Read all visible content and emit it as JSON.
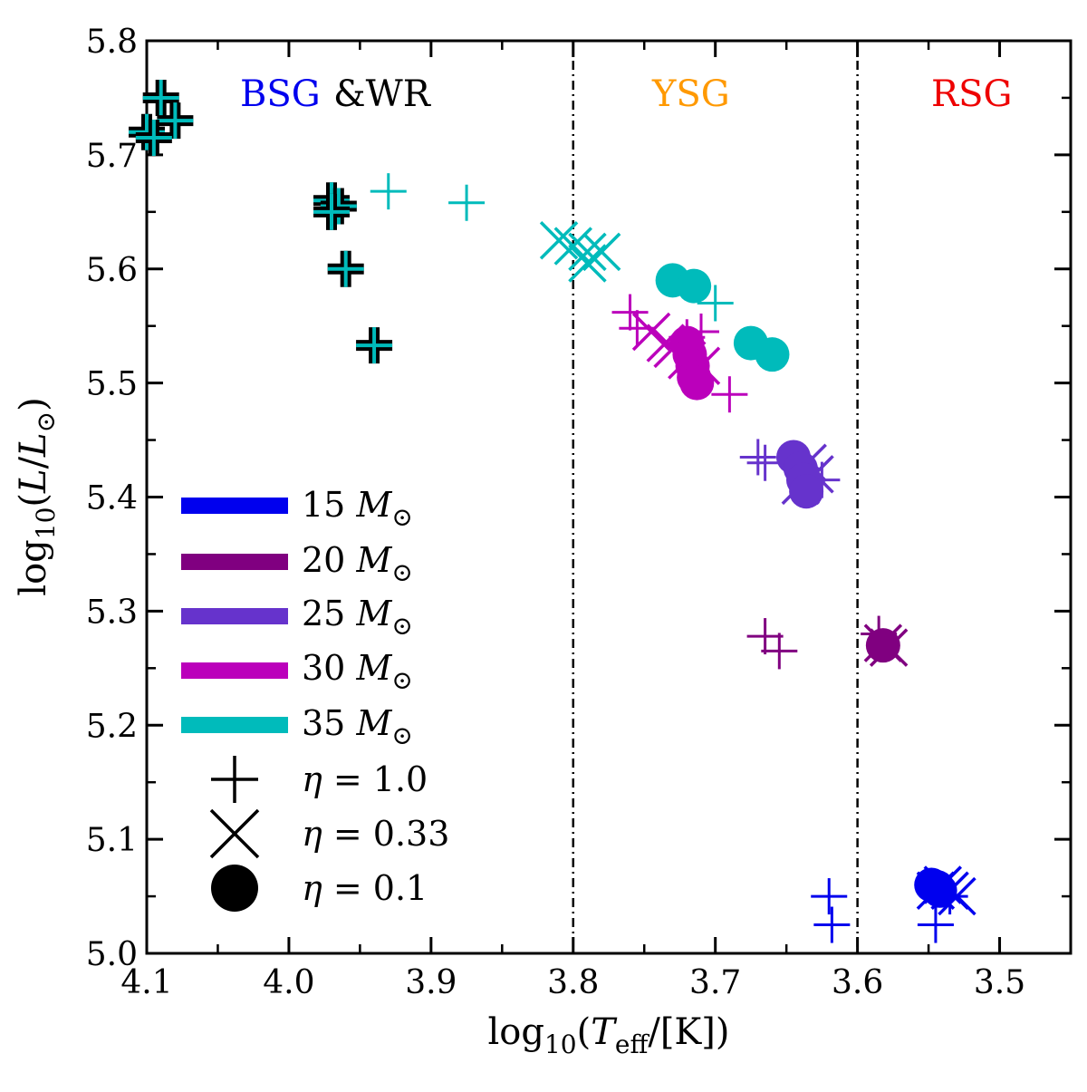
{
  "chart_data": {
    "type": "scatter",
    "title": "",
    "xlim": [
      4.1,
      3.45
    ],
    "ylim": [
      5.0,
      5.8
    ],
    "x_ticks": [
      4.1,
      4.0,
      3.9,
      3.8,
      3.7,
      3.6,
      3.5
    ],
    "x_tick_labels": [
      "4.1",
      "4.0",
      "3.9",
      "3.8",
      "3.7",
      "3.6",
      "3.5"
    ],
    "y_ticks": [
      5.0,
      5.1,
      5.2,
      5.3,
      5.4,
      5.5,
      5.6,
      5.7,
      5.8
    ],
    "y_tick_labels": [
      "5.0",
      "5.1",
      "5.2",
      "5.3",
      "5.4",
      "5.5",
      "5.6",
      "5.7",
      "5.8"
    ],
    "xlabel": {
      "pre": "log",
      "sub1": "10",
      "open": "(",
      "var": "T",
      "sub2": "eff",
      "post": "/[K])"
    },
    "ylabel": {
      "pre": "log",
      "sub1": "10",
      "open": "(",
      "var": "L",
      "slash": "/",
      "var2": "L",
      "sub2": "⊙",
      "close": ")"
    },
    "vlines": [
      3.8,
      3.6
    ],
    "regions": [
      {
        "name": "BSG",
        "color": "#0000ee"
      },
      {
        "name": "&WR",
        "color": "#000000"
      },
      {
        "name": "YSG",
        "color": "#ff9900"
      },
      {
        "name": "RSG",
        "color": "#ee0000"
      }
    ],
    "legend": {
      "placement": "left",
      "masses": [
        {
          "number": "15",
          "unit": "M",
          "sub": "⊙",
          "color": "#0000ee"
        },
        {
          "number": "20",
          "unit": "M",
          "sub": "⊙",
          "color": "#800080"
        },
        {
          "number": "25",
          "unit": "M",
          "sub": "⊙",
          "color": "#6633cc"
        },
        {
          "number": "30",
          "unit": "M",
          "sub": "⊙",
          "color": "#bb00bb"
        },
        {
          "number": "35",
          "unit": "M",
          "sub": "⊙",
          "color": "#00bbbb"
        }
      ],
      "markers": [
        {
          "marker": "plus",
          "symbol": "η",
          "eq": " = ",
          "value": "1.0"
        },
        {
          "marker": "x",
          "symbol": "η",
          "eq": " = ",
          "value": "0.33"
        },
        {
          "marker": "circle",
          "symbol": "η",
          "eq": " = ",
          "value": "0.1"
        }
      ]
    },
    "series": [
      {
        "name": "35 M⊙ η=1.0 (WR)",
        "color": "#00bbbb",
        "marker": "plus",
        "outline": true,
        "points": [
          [
            4.09,
            5.75
          ],
          [
            4.08,
            5.73
          ],
          [
            4.1,
            5.72
          ],
          [
            4.095,
            5.715
          ],
          [
            3.97,
            5.66
          ],
          [
            3.965,
            5.655
          ],
          [
            3.97,
            5.65
          ],
          [
            3.96,
            5.6
          ],
          [
            3.94,
            5.533
          ]
        ]
      },
      {
        "name": "35 M⊙ η=1.0",
        "color": "#00bbbb",
        "marker": "plus",
        "points": [
          [
            3.93,
            5.668
          ],
          [
            3.875,
            5.658
          ],
          [
            3.7,
            5.57
          ]
        ]
      },
      {
        "name": "35 M⊙ η=0.33",
        "color": "#00bbbb",
        "marker": "x",
        "points": [
          [
            3.81,
            5.625
          ],
          [
            3.8,
            5.62
          ],
          [
            3.79,
            5.615
          ],
          [
            3.78,
            5.615
          ],
          [
            3.79,
            5.605
          ]
        ]
      },
      {
        "name": "35 M⊙ η=0.1",
        "color": "#00bbbb",
        "marker": "circle",
        "points": [
          [
            3.73,
            5.59
          ],
          [
            3.715,
            5.585
          ],
          [
            3.675,
            5.535
          ],
          [
            3.66,
            5.525
          ]
        ]
      },
      {
        "name": "30 M⊙ η=1.0",
        "color": "#bb00bb",
        "marker": "plus",
        "points": [
          [
            3.76,
            5.562
          ],
          [
            3.755,
            5.548
          ],
          [
            3.72,
            5.54
          ],
          [
            3.69,
            5.49
          ],
          [
            3.71,
            5.545
          ]
        ]
      },
      {
        "name": "30 M⊙ η=0.33",
        "color": "#bb00bb",
        "marker": "x",
        "points": [
          [
            3.745,
            5.545
          ],
          [
            3.735,
            5.535
          ],
          [
            3.73,
            5.53
          ],
          [
            3.72,
            5.52
          ],
          [
            3.71,
            5.515
          ]
        ]
      },
      {
        "name": "30 M⊙ η=0.1",
        "color": "#bb00bb",
        "marker": "circle",
        "points": [
          [
            3.72,
            5.535
          ],
          [
            3.718,
            5.525
          ],
          [
            3.716,
            5.515
          ],
          [
            3.715,
            5.505
          ],
          [
            3.713,
            5.5
          ]
        ]
      },
      {
        "name": "25 M⊙ η=1.0",
        "color": "#6633cc",
        "marker": "plus",
        "points": [
          [
            3.67,
            5.435
          ],
          [
            3.665,
            5.43
          ],
          [
            3.625,
            5.415
          ]
        ]
      },
      {
        "name": "25 M⊙ η=0.33",
        "color": "#6633cc",
        "marker": "x",
        "points": [
          [
            3.635,
            5.43
          ],
          [
            3.63,
            5.42
          ],
          [
            3.64,
            5.41
          ]
        ]
      },
      {
        "name": "25 M⊙ η=0.1",
        "color": "#6633cc",
        "marker": "circle",
        "points": [
          [
            3.645,
            5.435
          ],
          [
            3.64,
            5.425
          ],
          [
            3.638,
            5.415
          ],
          [
            3.636,
            5.405
          ]
        ]
      },
      {
        "name": "20 M⊙ η=1.0",
        "color": "#800080",
        "marker": "plus",
        "points": [
          [
            3.665,
            5.278
          ],
          [
            3.655,
            5.265
          ],
          [
            3.585,
            5.28
          ]
        ]
      },
      {
        "name": "20 M⊙ η=0.33",
        "color": "#800080",
        "marker": "x",
        "points": [
          [
            3.582,
            5.272
          ],
          [
            3.578,
            5.268
          ]
        ]
      },
      {
        "name": "20 M⊙ η=0.1",
        "color": "#800080",
        "marker": "circle",
        "points": [
          [
            3.582,
            5.27
          ]
        ]
      },
      {
        "name": "15 M⊙ η=1.0",
        "color": "#0000ee",
        "marker": "plus",
        "points": [
          [
            3.62,
            5.05
          ],
          [
            3.618,
            5.025
          ],
          [
            3.545,
            5.025
          ],
          [
            3.535,
            5.05
          ]
        ]
      },
      {
        "name": "15 M⊙ η=0.33",
        "color": "#0000ee",
        "marker": "x",
        "points": [
          [
            3.54,
            5.06
          ],
          [
            3.535,
            5.055
          ],
          [
            3.53,
            5.05
          ],
          [
            3.545,
            5.055
          ]
        ]
      },
      {
        "name": "15 M⊙ η=0.1",
        "color": "#0000ee",
        "marker": "circle",
        "points": [
          [
            3.548,
            5.06
          ],
          [
            3.544,
            5.058
          ],
          [
            3.542,
            5.055
          ]
        ]
      }
    ]
  }
}
